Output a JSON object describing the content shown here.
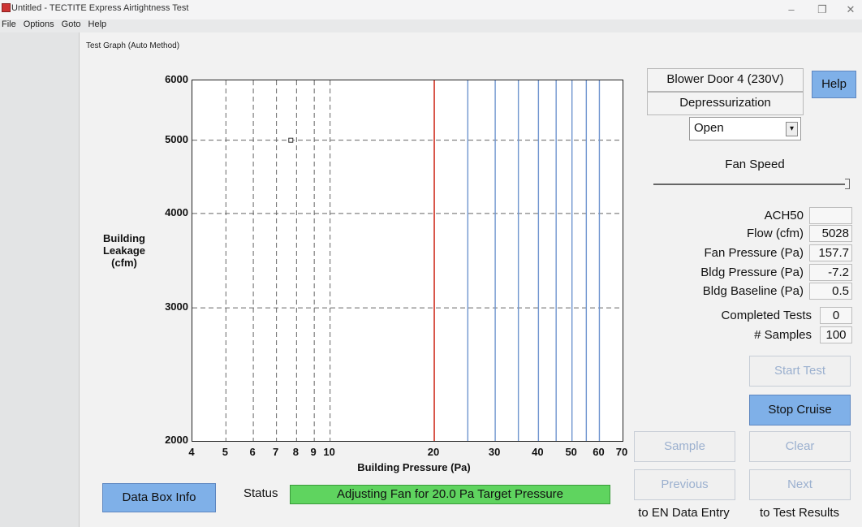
{
  "window": {
    "title": "Untitled - TECTITE Express Airtightness Test"
  },
  "menu": [
    "File",
    "Options",
    "Goto",
    "Help"
  ],
  "dialog": {
    "title": "Test Graph (Auto Method)"
  },
  "device": {
    "name": "Blower Door 4 (230V)",
    "mode": "Depressurization",
    "ring": "Open"
  },
  "help_label": "Help",
  "fan_speed": {
    "label": "Fan Speed",
    "level": 1.0
  },
  "readings": [
    {
      "label": "ACH50",
      "value": ""
    },
    {
      "label": "Flow (cfm)",
      "value": "5028"
    },
    {
      "label": "Fan Pressure (Pa)",
      "value": "157.7"
    },
    {
      "label": "Bldg Pressure (Pa)",
      "value": "-7.2"
    },
    {
      "label": "Bldg Baseline (Pa)",
      "value": "0.5"
    }
  ],
  "completed_tests": {
    "label": "Completed Tests",
    "value": "0"
  },
  "samples": {
    "label": "# Samples",
    "value": "100"
  },
  "buttons": {
    "start_test": "Start Test",
    "stop_cruise": "Stop Cruise",
    "sample": "Sample",
    "clear": "Clear",
    "previous": "Previous",
    "next": "Next",
    "data_box_info": "Data Box Info"
  },
  "nav": {
    "previous_caption": "to EN Data Entry",
    "next_caption": "to Test Results"
  },
  "status": {
    "label": "Status",
    "message": "Adjusting Fan for 20.0 Pa Target Pressure"
  },
  "chart_data": {
    "type": "scatter",
    "xlabel": "Building Pressure (Pa)",
    "ylabel": "Building Leakage (cfm)",
    "x_scale": "log",
    "y_scale": "log",
    "xlim": [
      4,
      70
    ],
    "ylim": [
      2000,
      6000
    ],
    "x_ticks": [
      "4",
      "5",
      "6",
      "7",
      "8",
      "9",
      "10",
      "20",
      "30",
      "40",
      "50",
      "60",
      "70"
    ],
    "y_ticks": [
      "2000",
      "3000",
      "4000",
      "5000",
      "6000"
    ],
    "target_pressure_line": 20,
    "target_lines": [
      25,
      30,
      35,
      40,
      45,
      50,
      55,
      60
    ],
    "points": [
      {
        "x": 7.7,
        "y": 5000
      }
    ]
  },
  "colors": {
    "target_line": "#d03020",
    "target_lines": "#6f95cf",
    "status_bg": "#5fd45f",
    "button_active": "#7fb0e8"
  }
}
